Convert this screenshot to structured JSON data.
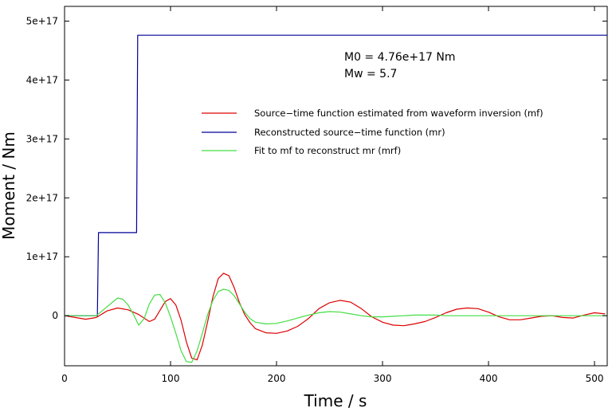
{
  "chart_data": {
    "type": "line",
    "title": "",
    "xlabel": "Time / s",
    "ylabel": "Moment / Nm",
    "xlim": [
      0,
      512
    ],
    "ylim": [
      -8.5e+16,
      5.25e+17
    ],
    "x_ticks": [
      0,
      100,
      200,
      300,
      400,
      500
    ],
    "y_ticks": [
      0,
      1e+17,
      2e+17,
      3e+17,
      4e+17,
      5e+17
    ],
    "y_tick_labels": [
      "0",
      "1e+17",
      "2e+17",
      "3e+17",
      "4e+17",
      "5e+17"
    ],
    "grid": false,
    "legend_position": "upper-middle",
    "annotations": [
      "M0 = 4.76e+17 Nm",
      "Mw = 5.7"
    ],
    "series": [
      {
        "name": "Source−time function estimated from waveform inversion (mf)",
        "color": "#dd0000",
        "x": [
          0,
          10,
          20,
          30,
          40,
          50,
          60,
          70,
          80,
          85,
          95,
          100,
          105,
          110,
          115,
          120,
          125,
          130,
          135,
          140,
          145,
          150,
          155,
          160,
          165,
          170,
          175,
          180,
          190,
          200,
          210,
          220,
          230,
          240,
          250,
          260,
          270,
          280,
          290,
          300,
          310,
          320,
          330,
          340,
          350,
          360,
          370,
          380,
          390,
          400,
          410,
          420,
          430,
          440,
          450,
          460,
          470,
          480,
          490,
          500,
          510
        ],
        "y": [
          0,
          -3000000000000000.0,
          -6000000000000000.0,
          -3000000000000000.0,
          8000000000000000.0,
          1.3e+16,
          1e+16,
          2000000000000000.0,
          -1e+16,
          -6000000000000000.0,
          2.4e+16,
          2.9e+16,
          1.8e+16,
          -8000000000000000.0,
          -4.5e+16,
          -7.2e+16,
          -7.5e+16,
          -5e+16,
          -1e+16,
          3.2e+16,
          6.3e+16,
          7.2e+16,
          6.8e+16,
          4.8e+16,
          2.2e+16,
          2000000000000000.0,
          -1.2e+16,
          -2.2e+16,
          -2.9e+16,
          -3e+16,
          -2.6e+16,
          -1.8e+16,
          -5000000000000000.0,
          1.2e+16,
          2.2e+16,
          2.6e+16,
          2.3e+16,
          1.2e+16,
          -2000000000000000.0,
          -1.1e+16,
          -1.6e+16,
          -1.7e+16,
          -1.4e+16,
          -1e+16,
          -3000000000000000.0,
          5000000000000000.0,
          1.1e+16,
          1.3e+16,
          1.2e+16,
          6000000000000000.0,
          -2000000000000000.0,
          -7000000000000000.0,
          -7000000000000000.0,
          -4000000000000000.0,
          -1000000000000000.0,
          0,
          -3000000000000000.0,
          -4000000000000000.0,
          1000000000000000.0,
          5000000000000000.0,
          3000000000000000.0
        ]
      },
      {
        "name": "Reconstructed source−time function (mr)",
        "color": "#00009a",
        "x": [
          0,
          31,
          32,
          68,
          69,
          512
        ],
        "y": [
          0,
          0,
          1.41e+17,
          1.41e+17,
          4.76e+17,
          4.76e+17
        ]
      },
      {
        "name": "Fit to mf to reconstruct mr (mrf)",
        "color": "#44dd44",
        "x": [
          0,
          10,
          20,
          30,
          40,
          50,
          55,
          60,
          65,
          70,
          75,
          80,
          85,
          90,
          95,
          100,
          105,
          110,
          115,
          120,
          125,
          130,
          135,
          140,
          145,
          150,
          155,
          160,
          165,
          170,
          175,
          180,
          190,
          200,
          210,
          220,
          230,
          240,
          250,
          260,
          270,
          280,
          290,
          300,
          310,
          320,
          330,
          340,
          350,
          360,
          400,
          450,
          512
        ],
        "y": [
          0,
          0,
          0,
          0,
          1.5e+16,
          3e+16,
          2.8e+16,
          1.8e+16,
          2000000000000000.0,
          -1.6e+16,
          -5000000000000000.0,
          2e+16,
          3.5e+16,
          3.6e+16,
          2.2e+16,
          -2000000000000000.0,
          -3e+16,
          -6e+16,
          -7.8e+16,
          -7.9e+16,
          -6e+16,
          -3e+16,
          2000000000000000.0,
          2.6e+16,
          4.1e+16,
          4.5e+16,
          4.3e+16,
          3.4e+16,
          2e+16,
          6000000000000000.0,
          -5000000000000000.0,
          -1.1e+16,
          -1.4e+16,
          -1.3e+16,
          -9000000000000000.0,
          -4000000000000000.0,
          1000000000000000.0,
          5000000000000000.0,
          7000000000000000.0,
          6000000000000000.0,
          3000000000000000.0,
          0,
          -2000000000000000.0,
          -2000000000000000.0,
          -1000000000000000.0,
          0,
          1000000000000000.0,
          1000000000000000.0,
          1000000000000000.0,
          0,
          0,
          0,
          0
        ]
      }
    ]
  }
}
